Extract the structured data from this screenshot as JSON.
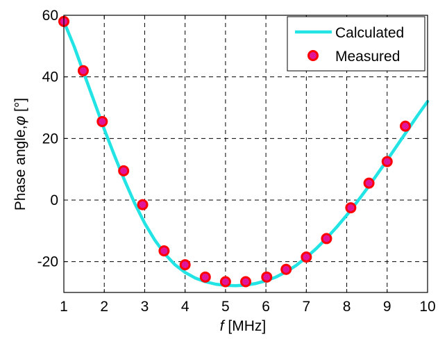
{
  "chart_data": {
    "type": "line",
    "xlabel_italic": "f",
    "xlabel_rest": " [MHz]",
    "ylabel_text": "Phase angle,",
    "ylabel_symbol": "φ",
    "ylabel_unit": " [°]",
    "xlim": [
      1,
      10
    ],
    "ylim": [
      -30,
      60
    ],
    "xticks": [
      1,
      2,
      3,
      4,
      5,
      6,
      7,
      8,
      9,
      10
    ],
    "yticks": [
      -20,
      0,
      20,
      40,
      60
    ],
    "ytick_labels": [
      "-20",
      "0",
      "20",
      "40",
      "60"
    ],
    "grid": true,
    "legend_position": "top-right",
    "series": [
      {
        "name": "Calculated",
        "style": "line",
        "color": "#22e4e4",
        "x": [
          1.0,
          1.25,
          1.5,
          1.75,
          2.0,
          2.25,
          2.5,
          2.75,
          3.0,
          3.25,
          3.5,
          3.75,
          4.0,
          4.25,
          4.5,
          4.75,
          5.0,
          5.25,
          5.5,
          5.75,
          6.0,
          6.25,
          6.5,
          6.75,
          7.0,
          7.25,
          7.5,
          7.75,
          8.0,
          8.25,
          8.5,
          8.75,
          9.0,
          9.25,
          9.5,
          9.75,
          10.0
        ],
        "y": [
          58,
          50,
          41,
          32,
          23,
          14.5,
          6.5,
          -1,
          -7.5,
          -13,
          -17.5,
          -21,
          -23.5,
          -25.3,
          -26.5,
          -27.3,
          -27.7,
          -27.8,
          -27.6,
          -27.1,
          -26.2,
          -25,
          -23.3,
          -21.2,
          -18.6,
          -15.7,
          -12.4,
          -8.8,
          -4.9,
          -0.7,
          3.7,
          8.3,
          13,
          17.8,
          22.6,
          27.4,
          32
        ]
      },
      {
        "name": "Measured",
        "style": "marker",
        "color": "#ff0000",
        "fill": "#e0169a",
        "x": [
          1.0,
          1.48,
          1.95,
          2.48,
          2.95,
          3.48,
          4.0,
          4.5,
          5.0,
          5.5,
          6.02,
          6.5,
          7.0,
          7.5,
          8.1,
          8.55,
          9.0,
          9.45
        ],
        "y": [
          58,
          42,
          25.5,
          9.5,
          -1.5,
          -16.5,
          -21,
          -25,
          -26.5,
          -26.5,
          -25,
          -22.5,
          -18.5,
          -12.5,
          -2.5,
          5.5,
          12.5,
          24
        ]
      }
    ]
  }
}
